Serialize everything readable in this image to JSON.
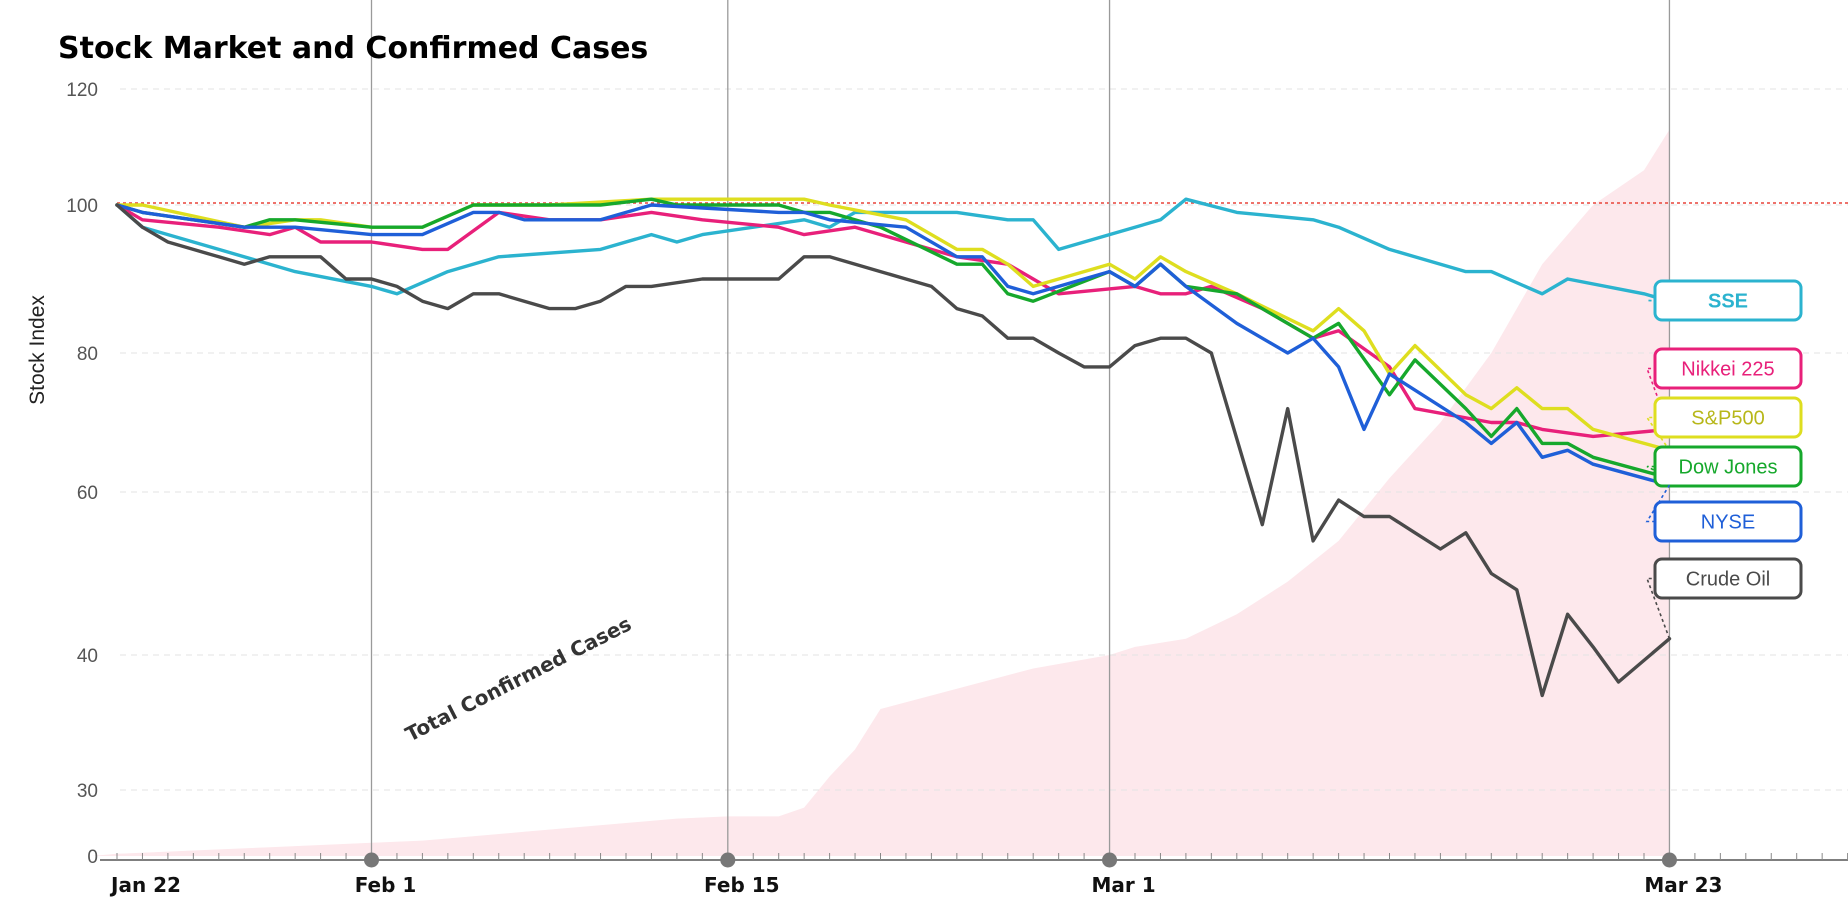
{
  "chart_data": {
    "type": "line",
    "title": "Stock Market and Confirmed Cases",
    "ylabel": "Stock Index",
    "xlabel": "",
    "y_ticks": [
      0,
      30,
      40,
      60,
      80,
      100,
      120
    ],
    "x_ticks": [
      {
        "label": "Jan 22",
        "day": 0
      },
      {
        "label": "Feb 1",
        "day": 10
      },
      {
        "label": "Feb 15",
        "day": 24
      },
      {
        "label": "Mar 1",
        "day": 39
      },
      {
        "label": "Mar 23",
        "day": 61
      }
    ],
    "ylim": [
      0,
      120
    ],
    "baseline": 100,
    "annotation": "Total Confirmed Cases",
    "series": [
      {
        "name": "SSE",
        "color": "#2BB3CF",
        "values": [
          [
            0,
            100
          ],
          [
            1,
            97
          ],
          [
            4,
            94
          ],
          [
            7,
            91
          ],
          [
            10,
            89
          ],
          [
            11,
            88
          ],
          [
            13,
            91
          ],
          [
            15,
            93
          ],
          [
            19,
            94
          ],
          [
            21,
            96
          ],
          [
            22,
            95
          ],
          [
            23,
            96
          ],
          [
            27,
            98
          ],
          [
            28,
            97
          ],
          [
            29,
            99
          ],
          [
            33,
            99
          ],
          [
            35,
            98
          ],
          [
            36,
            98
          ],
          [
            37,
            94
          ],
          [
            39,
            96
          ],
          [
            40,
            97
          ],
          [
            41,
            98
          ],
          [
            42,
            101
          ],
          [
            44,
            99
          ],
          [
            47,
            98
          ],
          [
            48,
            97
          ],
          [
            50,
            94
          ],
          [
            53,
            91
          ],
          [
            54,
            91
          ],
          [
            56,
            88
          ],
          [
            57,
            90
          ],
          [
            60,
            88
          ],
          [
            61,
            87
          ]
        ]
      },
      {
        "name": "Nikkei 225",
        "color": "#E8207A",
        "values": [
          [
            0,
            100
          ],
          [
            1,
            98
          ],
          [
            4,
            97
          ],
          [
            6,
            96
          ],
          [
            7,
            97
          ],
          [
            8,
            95
          ],
          [
            10,
            95
          ],
          [
            12,
            94
          ],
          [
            13,
            94
          ],
          [
            15,
            99
          ],
          [
            17,
            98
          ],
          [
            19,
            98
          ],
          [
            21,
            99
          ],
          [
            23,
            98
          ],
          [
            26,
            97
          ],
          [
            27,
            96
          ],
          [
            29,
            97
          ],
          [
            33,
            93
          ],
          [
            35,
            92
          ],
          [
            36,
            90
          ],
          [
            37,
            88
          ],
          [
            40,
            89
          ],
          [
            41,
            88
          ],
          [
            42,
            88
          ],
          [
            43,
            89
          ],
          [
            45,
            86
          ],
          [
            47,
            82
          ],
          [
            48,
            83
          ],
          [
            50,
            78
          ],
          [
            51,
            72
          ],
          [
            54,
            70
          ],
          [
            55,
            70
          ],
          [
            56,
            69
          ],
          [
            58,
            68
          ],
          [
            61,
            69
          ]
        ]
      },
      {
        "name": "S&P500",
        "color": "#DEDE1F",
        "values": [
          [
            0,
            100
          ],
          [
            1,
            100
          ],
          [
            5,
            97
          ],
          [
            7,
            98
          ],
          [
            8,
            98
          ],
          [
            10,
            97
          ],
          [
            12,
            97
          ],
          [
            14,
            100
          ],
          [
            15,
            100
          ],
          [
            17,
            100
          ],
          [
            21,
            101
          ],
          [
            22,
            101
          ],
          [
            26,
            101
          ],
          [
            27,
            101
          ],
          [
            28,
            100
          ],
          [
            31,
            98
          ],
          [
            33,
            94
          ],
          [
            34,
            94
          ],
          [
            35,
            92
          ],
          [
            36,
            89
          ],
          [
            39,
            92
          ],
          [
            40,
            90
          ],
          [
            41,
            93
          ],
          [
            42,
            91
          ],
          [
            44,
            88
          ],
          [
            47,
            83
          ],
          [
            48,
            86
          ],
          [
            49,
            83
          ],
          [
            50,
            77
          ],
          [
            51,
            81
          ],
          [
            53,
            74
          ],
          [
            54,
            72
          ],
          [
            55,
            75
          ],
          [
            56,
            72
          ],
          [
            57,
            72
          ],
          [
            58,
            69
          ],
          [
            61,
            66
          ]
        ]
      },
      {
        "name": "Dow Jones",
        "color": "#16A82C",
        "values": [
          [
            0,
            100
          ],
          [
            1,
            99
          ],
          [
            5,
            97
          ],
          [
            6,
            98
          ],
          [
            7,
            98
          ],
          [
            10,
            97
          ],
          [
            12,
            97
          ],
          [
            14,
            100
          ],
          [
            16,
            100
          ],
          [
            19,
            100
          ],
          [
            21,
            101
          ],
          [
            22,
            100
          ],
          [
            26,
            100
          ],
          [
            27,
            99
          ],
          [
            28,
            99
          ],
          [
            30,
            97
          ],
          [
            33,
            92
          ],
          [
            34,
            92
          ],
          [
            35,
            88
          ],
          [
            36,
            87
          ],
          [
            39,
            91
          ],
          [
            40,
            89
          ],
          [
            41,
            92
          ],
          [
            42,
            89
          ],
          [
            44,
            88
          ],
          [
            47,
            82
          ],
          [
            48,
            84
          ],
          [
            50,
            74
          ],
          [
            51,
            79
          ],
          [
            53,
            72
          ],
          [
            54,
            68
          ],
          [
            55,
            72
          ],
          [
            56,
            67
          ],
          [
            57,
            67
          ],
          [
            58,
            65
          ],
          [
            61,
            62
          ]
        ]
      },
      {
        "name": "NYSE",
        "color": "#1F5FD8",
        "values": [
          [
            0,
            100
          ],
          [
            1,
            99
          ],
          [
            5,
            97
          ],
          [
            6,
            97
          ],
          [
            7,
            97
          ],
          [
            10,
            96
          ],
          [
            12,
            96
          ],
          [
            14,
            99
          ],
          [
            15,
            99
          ],
          [
            16,
            98
          ],
          [
            19,
            98
          ],
          [
            21,
            100
          ],
          [
            26,
            99
          ],
          [
            27,
            99
          ],
          [
            28,
            98
          ],
          [
            31,
            97
          ],
          [
            33,
            93
          ],
          [
            34,
            93
          ],
          [
            35,
            89
          ],
          [
            36,
            88
          ],
          [
            39,
            91
          ],
          [
            40,
            89
          ],
          [
            41,
            92
          ],
          [
            42,
            89
          ],
          [
            44,
            84
          ],
          [
            46,
            80
          ],
          [
            47,
            82
          ],
          [
            48,
            78
          ],
          [
            49,
            69
          ],
          [
            50,
            77
          ],
          [
            53,
            70
          ],
          [
            54,
            67
          ],
          [
            55,
            70
          ],
          [
            56,
            65
          ],
          [
            57,
            66
          ],
          [
            58,
            64
          ],
          [
            61,
            61
          ]
        ]
      },
      {
        "name": "Crude Oil",
        "color": "#4A4A4A",
        "values": [
          [
            0,
            100
          ],
          [
            1,
            97
          ],
          [
            2,
            95
          ],
          [
            3,
            94
          ],
          [
            4,
            93
          ],
          [
            5,
            92
          ],
          [
            6,
            93
          ],
          [
            7,
            93
          ],
          [
            8,
            93
          ],
          [
            9,
            90
          ],
          [
            10,
            90
          ],
          [
            11,
            89
          ],
          [
            12,
            87
          ],
          [
            13,
            86
          ],
          [
            14,
            88
          ],
          [
            15,
            88
          ],
          [
            16,
            87
          ],
          [
            17,
            86
          ],
          [
            18,
            86
          ],
          [
            19,
            87
          ],
          [
            20,
            89
          ],
          [
            21,
            89
          ],
          [
            23,
            90
          ],
          [
            26,
            90
          ],
          [
            27,
            93
          ],
          [
            28,
            93
          ],
          [
            30,
            91
          ],
          [
            31,
            90
          ],
          [
            32,
            89
          ],
          [
            33,
            86
          ],
          [
            34,
            85
          ],
          [
            35,
            82
          ],
          [
            36,
            82
          ],
          [
            37,
            80
          ],
          [
            38,
            78
          ],
          [
            39,
            78
          ],
          [
            40,
            81
          ],
          [
            41,
            82
          ],
          [
            42,
            82
          ],
          [
            43,
            80
          ],
          [
            45,
            56
          ],
          [
            46,
            72
          ],
          [
            47,
            54
          ],
          [
            48,
            59
          ],
          [
            49,
            57
          ],
          [
            50,
            57
          ],
          [
            51,
            55
          ],
          [
            52,
            53
          ],
          [
            53,
            55
          ],
          [
            54,
            50
          ],
          [
            55,
            48
          ],
          [
            56,
            37
          ],
          [
            57,
            45
          ],
          [
            58,
            41
          ],
          [
            59,
            38
          ],
          [
            61,
            42
          ]
        ]
      }
    ],
    "confirmed_cases_area": {
      "color": "#FDE8EC",
      "values": [
        [
          -1,
          0
        ],
        [
          0,
          1
        ],
        [
          2,
          2
        ],
        [
          4,
          3
        ],
        [
          6,
          4
        ],
        [
          8,
          5
        ],
        [
          10,
          6
        ],
        [
          12,
          7
        ],
        [
          14,
          9
        ],
        [
          16,
          11
        ],
        [
          18,
          13
        ],
        [
          20,
          15
        ],
        [
          22,
          17
        ],
        [
          24,
          18
        ],
        [
          25,
          18
        ],
        [
          26,
          18
        ],
        [
          27,
          22
        ],
        [
          28,
          31
        ],
        [
          29,
          33
        ],
        [
          30,
          36
        ],
        [
          32,
          37
        ],
        [
          34,
          38
        ],
        [
          36,
          39
        ],
        [
          39,
          40
        ],
        [
          40,
          41
        ],
        [
          42,
          42
        ],
        [
          44,
          45
        ],
        [
          46,
          49
        ],
        [
          48,
          54
        ],
        [
          50,
          62
        ],
        [
          52,
          70
        ],
        [
          54,
          80
        ],
        [
          56,
          92
        ],
        [
          58,
          100
        ],
        [
          60,
          106
        ],
        [
          61,
          113
        ]
      ]
    }
  }
}
